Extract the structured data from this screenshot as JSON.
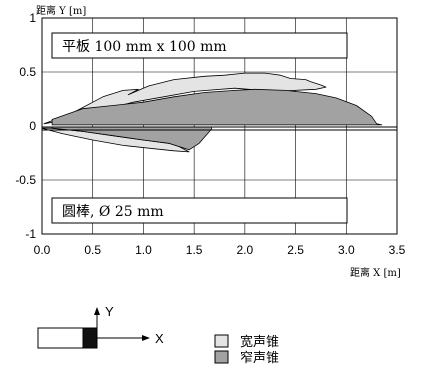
{
  "chart_data": {
    "type": "area",
    "ylabel": "距离 Y [m]",
    "xlabel": "距离 X [m]",
    "xlim": [
      0,
      3.5
    ],
    "ylim": [
      -1,
      1
    ],
    "xticks": [
      0,
      0.5,
      1.0,
      1.5,
      2.0,
      2.5,
      3.0,
      3.5
    ],
    "xtick_labels": [
      "0.0",
      "0.5",
      "1.0",
      "1.5",
      "2.0",
      "2.5",
      "3.0",
      "3.5"
    ],
    "yticks": [
      1,
      0.5,
      0,
      -0.5,
      -1
    ],
    "ytick_labels": [
      "1",
      "0.5",
      "0",
      "-0.5",
      "-1"
    ],
    "grid": true,
    "annotations": {
      "plate": "平板 100 mm x 100 mm",
      "rod": "圆棒, Ø 25 mm"
    },
    "series": [
      {
        "name": "宽声锥",
        "color": "#e4e4e4",
        "target": "plate",
        "points": [
          [
            0.02,
            0.02
          ],
          [
            0.3,
            0.12
          ],
          [
            0.6,
            0.27
          ],
          [
            0.8,
            0.33
          ],
          [
            0.95,
            0.34
          ],
          [
            0.85,
            0.29
          ],
          [
            1.05,
            0.37
          ],
          [
            1.3,
            0.43
          ],
          [
            1.6,
            0.46
          ],
          [
            1.8,
            0.47
          ],
          [
            2.0,
            0.49
          ],
          [
            2.2,
            0.49
          ],
          [
            2.35,
            0.47
          ],
          [
            2.45,
            0.44
          ],
          [
            2.6,
            0.43
          ],
          [
            2.65,
            0.41
          ],
          [
            2.75,
            0.38
          ],
          [
            2.8,
            0.36
          ],
          [
            2.7,
            0.34
          ],
          [
            2.3,
            0.32
          ],
          [
            1.9,
            0.35
          ],
          [
            1.5,
            0.32
          ],
          [
            1.2,
            0.27
          ],
          [
            0.9,
            0.22
          ],
          [
            0.6,
            0.15
          ],
          [
            0.3,
            0.07
          ],
          [
            0.02,
            0.02
          ]
        ]
      },
      {
        "name": "窄声锥",
        "color": "#a2a2a2",
        "target": "plate",
        "points": [
          [
            0.1,
            0.06
          ],
          [
            0.4,
            0.16
          ],
          [
            0.7,
            0.19
          ],
          [
            1.0,
            0.22
          ],
          [
            1.3,
            0.27
          ],
          [
            1.6,
            0.31
          ],
          [
            1.9,
            0.33
          ],
          [
            2.1,
            0.34
          ],
          [
            2.4,
            0.33
          ],
          [
            2.7,
            0.3
          ],
          [
            2.9,
            0.26
          ],
          [
            3.1,
            0.19
          ],
          [
            3.25,
            0.09
          ],
          [
            3.3,
            0.02
          ],
          [
            3.35,
            0.01
          ],
          [
            0.1,
            0.01
          ]
        ]
      },
      {
        "name": "宽声锥",
        "color": "#e4e4e4",
        "target": "rod",
        "points": [
          [
            0.0,
            -0.02
          ],
          [
            0.2,
            -0.07
          ],
          [
            0.5,
            -0.13
          ],
          [
            0.8,
            -0.18
          ],
          [
            1.1,
            -0.21
          ],
          [
            1.3,
            -0.23
          ],
          [
            1.45,
            -0.24
          ],
          [
            1.35,
            -0.19
          ],
          [
            1.25,
            -0.16
          ],
          [
            1.0,
            -0.13
          ],
          [
            0.7,
            -0.09
          ],
          [
            0.4,
            -0.05
          ],
          [
            0.1,
            -0.02
          ]
        ]
      },
      {
        "name": "窄声锥",
        "color": "#a2a2a2",
        "target": "rod",
        "points": [
          [
            0.1,
            -0.02
          ],
          [
            0.4,
            -0.05
          ],
          [
            0.7,
            -0.09
          ],
          [
            1.0,
            -0.13
          ],
          [
            1.25,
            -0.16
          ],
          [
            1.35,
            -0.19
          ],
          [
            1.45,
            -0.22
          ],
          [
            1.55,
            -0.16
          ],
          [
            1.67,
            -0.03
          ],
          [
            1.67,
            -0.01
          ],
          [
            0.1,
            -0.01
          ]
        ]
      }
    ],
    "legend": [
      {
        "label": "宽声锥",
        "color": "#e4e4e4"
      },
      {
        "label": "窄声锥",
        "color": "#a2a2a2"
      }
    ],
    "legend_position": "bottom-right",
    "sensor_diagram": {
      "y_axis_label": "Y",
      "x_axis_label": "X"
    }
  }
}
